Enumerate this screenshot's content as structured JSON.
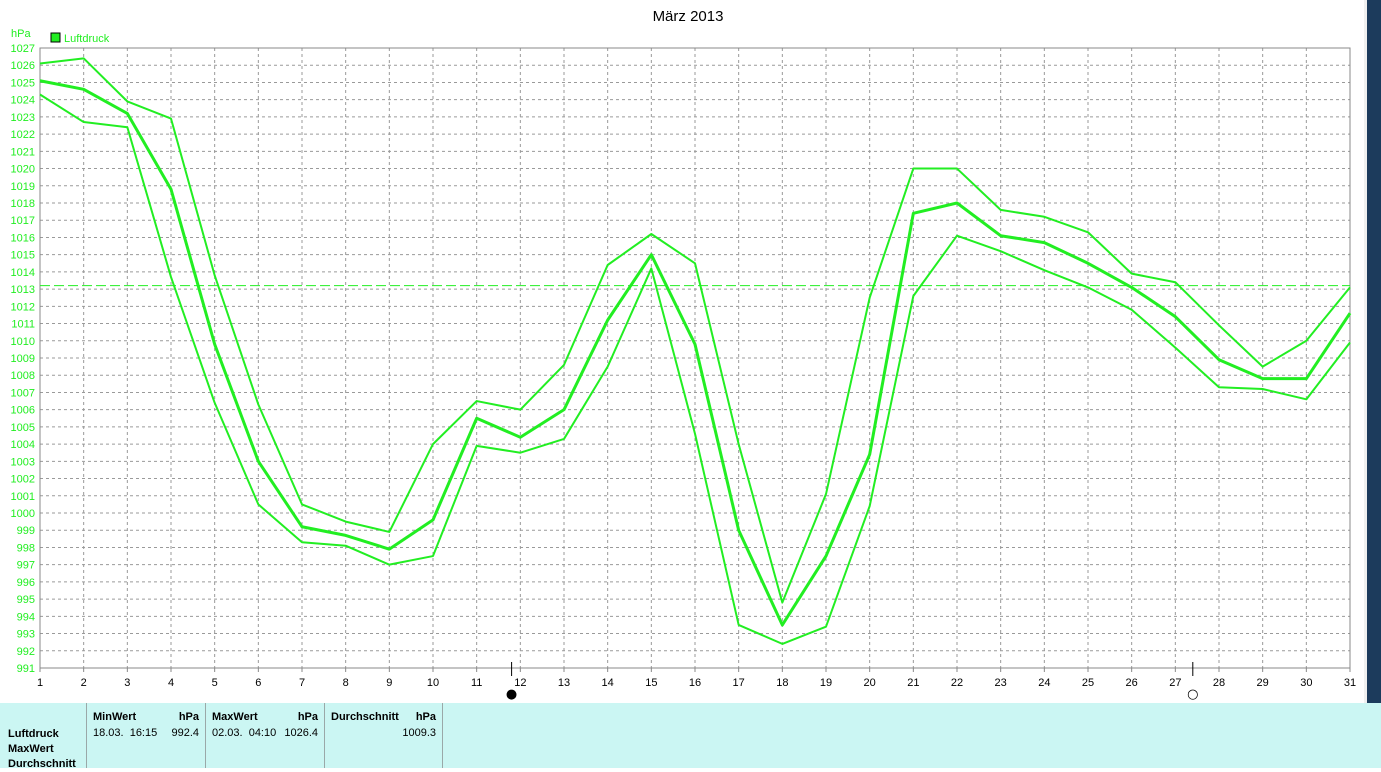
{
  "chart_data": {
    "type": "line",
    "title": "März 2013",
    "y_unit": "hPa",
    "xlim": [
      1,
      31
    ],
    "ylim": [
      991,
      1027
    ],
    "x_ticks": [
      "1",
      "2",
      "3",
      "4",
      "5",
      "6",
      "7",
      "8",
      "9",
      "10",
      "11",
      "12",
      "13",
      "14",
      "15",
      "16",
      "17",
      "18",
      "19",
      "20",
      "21",
      "22",
      "23",
      "24",
      "25",
      "26",
      "27",
      "28",
      "29",
      "30",
      "31"
    ],
    "y_ticks": [
      "991",
      "992",
      "993",
      "994",
      "995",
      "996",
      "997",
      "998",
      "999",
      "1000",
      "1001",
      "1002",
      "1003",
      "1004",
      "1005",
      "1006",
      "1007",
      "1008",
      "1009",
      "1010",
      "1011",
      "1012",
      "1013",
      "1014",
      "1015",
      "1016",
      "1017",
      "1018",
      "1019",
      "1020",
      "1021",
      "1022",
      "1023",
      "1024",
      "1025",
      "1026",
      "1027"
    ],
    "legend": [
      {
        "name": "Luftdruck",
        "color": "#22ee22"
      }
    ],
    "legend_position": "top-left",
    "grid": true,
    "reference_line": 1013.2,
    "x": [
      1,
      2,
      3,
      4,
      5,
      6,
      7,
      8,
      9,
      10,
      11,
      12,
      13,
      14,
      15,
      16,
      17,
      18,
      19,
      20,
      21,
      22,
      23,
      24,
      25,
      26,
      27,
      28,
      29,
      30,
      31
    ],
    "series": [
      {
        "role": "max",
        "values": [
          1026.1,
          1026.4,
          1023.9,
          1022.9,
          1013.8,
          1006.3,
          1000.5,
          999.5,
          998.9,
          1004.0,
          1006.5,
          1006.0,
          1008.6,
          1014.4,
          1016.2,
          1014.5,
          1004.0,
          994.8,
          1001.1,
          1012.5,
          1020.0,
          1020.0,
          1017.6,
          1017.2,
          1016.3,
          1013.9,
          1013.4,
          1010.9,
          1008.5,
          1010.0,
          1013.1
        ]
      },
      {
        "role": "avg",
        "values": [
          1025.1,
          1024.6,
          1023.2,
          1018.8,
          1009.8,
          1003.0,
          999.2,
          998.7,
          997.9,
          999.6,
          1005.5,
          1004.4,
          1006.0,
          1011.2,
          1015.0,
          1009.8,
          999.0,
          993.5,
          997.5,
          1003.4,
          1017.4,
          1018.0,
          1016.1,
          1015.7,
          1014.5,
          1013.1,
          1011.4,
          1008.9,
          1007.8,
          1007.8,
          1011.6
        ]
      },
      {
        "role": "min",
        "values": [
          1024.3,
          1022.7,
          1022.4,
          1013.7,
          1006.4,
          1000.5,
          998.3,
          998.1,
          997.0,
          997.5,
          1003.9,
          1003.5,
          1004.3,
          1008.5,
          1014.2,
          1004.6,
          993.5,
          992.4,
          993.4,
          1000.4,
          1012.6,
          1016.1,
          1015.2,
          1014.1,
          1013.1,
          1011.8,
          1009.6,
          1007.3,
          1007.2,
          1006.6,
          1009.9
        ]
      }
    ]
  },
  "moon_phases": [
    {
      "day": 11.8,
      "symbol": "●",
      "name": "new-moon"
    },
    {
      "day": 27.4,
      "symbol": "○",
      "name": "full-moon"
    }
  ],
  "stats": {
    "row_labels": [
      "Luftdruck",
      "MaxWert",
      "Durchschnitt"
    ],
    "min": {
      "header": "MinWert",
      "unit": "hPa",
      "datetime": "18.03.  16:15",
      "value": "992.4"
    },
    "max": {
      "header": "MaxWert",
      "unit": "hPa",
      "datetime": "02.03.  04:10",
      "value": "1026.4"
    },
    "avg": {
      "header": "Durchschnitt",
      "unit": "hPa",
      "value": "1009.3"
    }
  }
}
